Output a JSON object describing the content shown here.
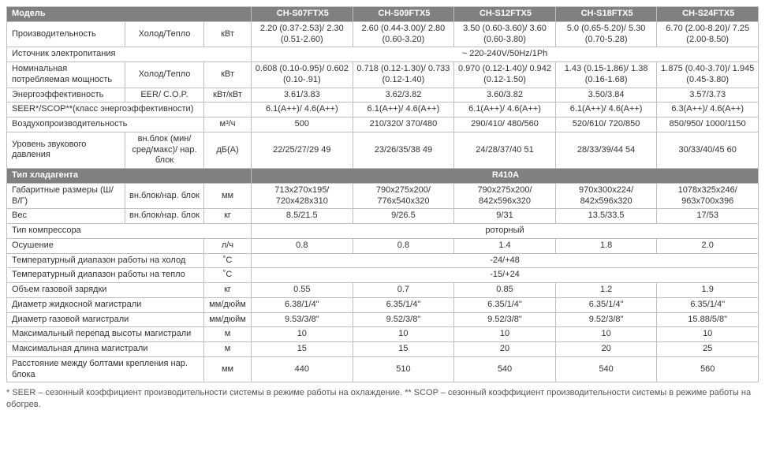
{
  "header": {
    "model_label": "Модель",
    "models": [
      "CH-S07FTX5",
      "CH-S09FTX5",
      "CH-S12FTX5",
      "CH-S18FTX5",
      "CH-S24FTX5"
    ]
  },
  "section_refrigerant": {
    "label": "Тип хладагента",
    "value": "R410A"
  },
  "rows": {
    "perf": {
      "label": "Производительность",
      "sub": "Холод/Тепло",
      "unit": "кВт",
      "v": [
        "2.20 (0.37-2.53)/ 2.30 (0.51-2.60)",
        "2.60 (0.44-3.00)/ 2.80 (0.60-3.20)",
        "3.50 (0.60-3.60)/ 3.60 (0.60-3.80)",
        "5.0 (0.65-5.20)/ 5.30 (0.70-5.28)",
        "6.70 (2.00-8.20)/ 7.25 (2.00-8.50)"
      ]
    },
    "power_src": {
      "label": "Источник электропитания",
      "value": "~ 220-240V/50Hz/1Ph"
    },
    "nom_power": {
      "label": "Номинальная потребляемая мощность",
      "sub": "Холод/Тепло",
      "unit": "кВт",
      "v": [
        "0.608 (0.10-0.95)/ 0.602 (0.10-.91)",
        "0.718 (0.12-1.30)/ 0.733 (0.12-1.40)",
        "0.970 (0.12-1.40)/ 0.942 (0.12-1.50)",
        "1.43 (0.15-1.86)/ 1.38 (0.16-1.68)",
        "1.875 (0.40-3.70)/ 1.945 (0.45-3.80)"
      ]
    },
    "eer": {
      "label": "Энергоэффективность",
      "sub": "EER/ C.O.P.",
      "unit": "кВт/кВт",
      "v": [
        "3.61/3.83",
        "3.62/3.82",
        "3.60/3.82",
        "3.50/3.84",
        "3.57/3.73"
      ]
    },
    "seer": {
      "label": "SEER*/SCOP**(класс энергоэффективности)",
      "sub": "",
      "unit": "",
      "v": [
        "6.1(A++)/ 4.6(A++)",
        "6.1(A++)/ 4.6(A++)",
        "6.1(A++)/ 4.6(A++)",
        "6.1(A++)/ 4.6(A++)",
        "6.3(A++)/ 4.6(A++)"
      ]
    },
    "airflow": {
      "label": "Воздухопроизводительность",
      "sub": "",
      "unit": "м³/ч",
      "v": [
        "500",
        "210/320/ 370/480",
        "290/410/ 480/560",
        "520/610/ 720/850",
        "850/950/ 1000/1150"
      ]
    },
    "noise": {
      "label": "Уровень звукового давления",
      "sub": "вн.блок (мин/сред/макс)/ нар. блок",
      "unit": "дБ(А)",
      "v": [
        "22/25/27/29 49",
        "23/26/35/38 49",
        "24/28/37/40 51",
        "28/33/39/44 54",
        "30/33/40/45 60"
      ]
    },
    "dims": {
      "label": "Габаритные размеры (Ш/В/Г)",
      "sub": "вн.блок/нар. блок",
      "unit": "мм",
      "v": [
        "713x270x195/ 720x428x310",
        "790x275x200/ 776x540x320",
        "790x275x200/ 842x596x320",
        "970x300x224/ 842x596x320",
        "1078x325x246/ 963x700x396"
      ]
    },
    "weight": {
      "label": "Вес",
      "sub": "вн.блок/нар. блок",
      "unit": "кг",
      "v": [
        "8.5/21.5",
        "9/26.5",
        "9/31",
        "13.5/33.5",
        "17/53"
      ]
    },
    "compressor": {
      "label": "Тип компрессора",
      "value": "роторный"
    },
    "dehum": {
      "label": "Осушение",
      "unit": "л/ч",
      "v": [
        "0.8",
        "0.8",
        "1.4",
        "1.8",
        "2.0"
      ]
    },
    "temp_cool": {
      "label": "Температурный диапазон работы на холод",
      "unit": "˚С",
      "value": "-24/+48"
    },
    "temp_heat": {
      "label": "Температурный диапазон работы на тепло",
      "unit": "˚С",
      "value": "-15/+24"
    },
    "gas_charge": {
      "label": "Объем газовой зарядки",
      "unit": "кг",
      "v": [
        "0.55",
        "0.7",
        "0.85",
        "1.2",
        "1.9"
      ]
    },
    "liquid_pipe": {
      "label": "Диаметр жидкосной магистрали",
      "unit": "мм/дюйм",
      "v": [
        "6.38/1/4\"",
        "6.35/1/4\"",
        "6.35/1/4\"",
        "6.35/1/4\"",
        "6.35/1/4\""
      ]
    },
    "gas_pipe": {
      "label": "Диаметр газовой магистрали",
      "unit": "мм/дюйм",
      "v": [
        "9.53/3/8\"",
        "9.52/3/8\"",
        "9.52/3/8\"",
        "9.52/3/8\"",
        "15.88/5/8\""
      ]
    },
    "max_height": {
      "label": "Максимальный перепад высоты магистрали",
      "unit": "м",
      "v": [
        "10",
        "10",
        "10",
        "10",
        "10"
      ]
    },
    "max_length": {
      "label": "Максимальная длина магистрали",
      "unit": "м",
      "v": [
        "15",
        "15",
        "20",
        "20",
        "25"
      ]
    },
    "bolt_dist": {
      "label": "Расстояние между болтами крепления нар. блока",
      "unit": "мм",
      "v": [
        "440",
        "510",
        "540",
        "540",
        "560"
      ]
    }
  },
  "footnote": "* SEER – сезонный коэффициент производительности системы в режиме работы на охлаждение. ** SCOP – сезонный коэффициент производительности системы в режиме работы на обогрев.",
  "colors": {
    "header_bg": "#808080",
    "header_fg": "#ffffff",
    "border": "#bfbfbf",
    "text": "#333333"
  }
}
